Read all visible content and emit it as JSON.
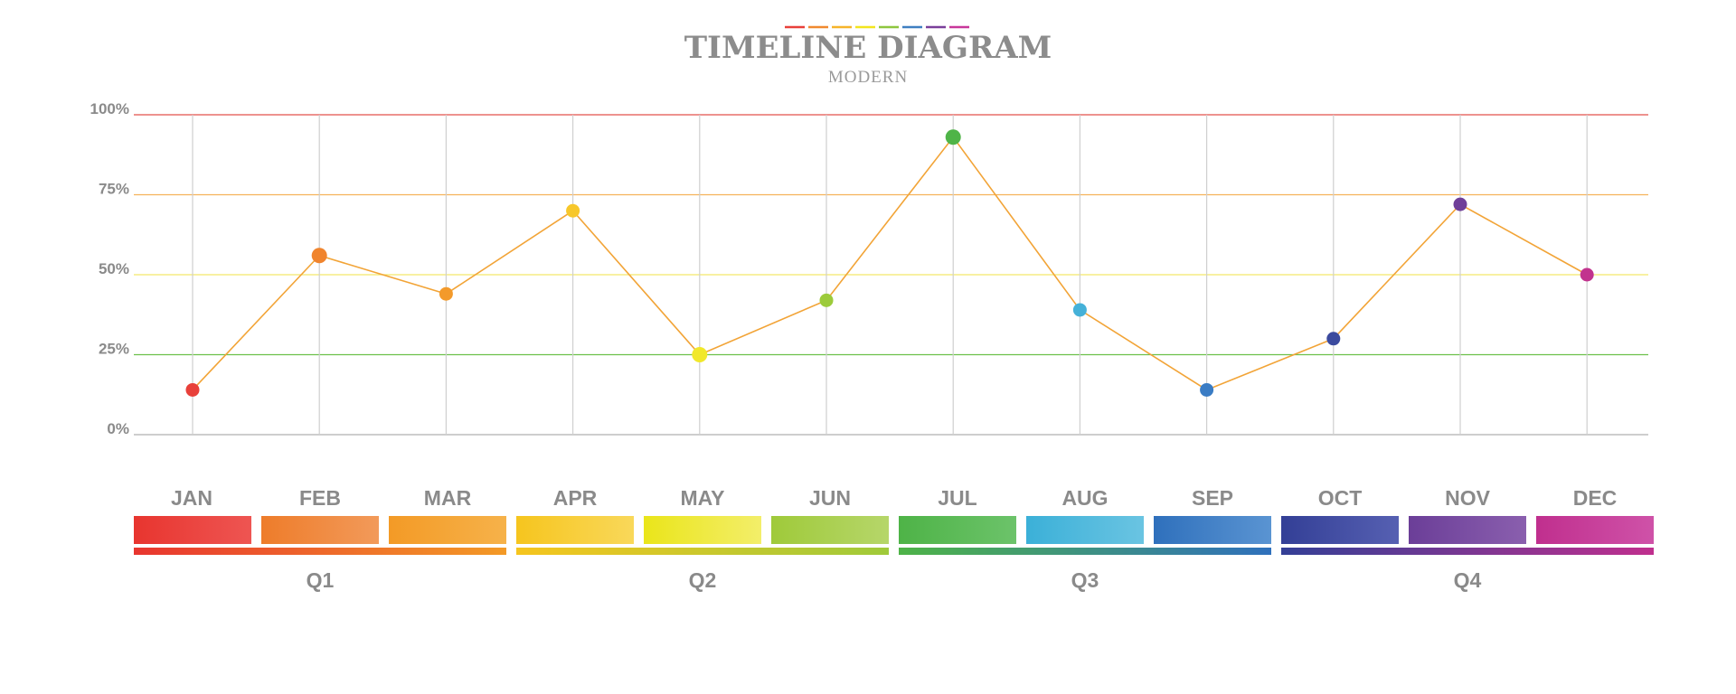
{
  "header": {
    "title": "TIMELINE DIAGRAM",
    "subtitle": "MODERN",
    "dash_colors": [
      "#e8403a",
      "#f0892f",
      "#f6b42a",
      "#f2e51e",
      "#8ec63f",
      "#3f7fc1",
      "#7a3f9a",
      "#c8379a"
    ]
  },
  "chart_data": {
    "type": "line",
    "title": "TIMELINE DIAGRAM",
    "subtitle": "MODERN",
    "xlabel": "",
    "ylabel": "",
    "categories": [
      "JAN",
      "FEB",
      "MAR",
      "APR",
      "MAY",
      "JUN",
      "JUL",
      "AUG",
      "SEP",
      "OCT",
      "NOV",
      "DEC"
    ],
    "values": [
      14,
      56,
      44,
      70,
      25,
      42,
      93,
      39,
      14,
      30,
      72,
      50
    ],
    "ylim": [
      0,
      100
    ],
    "yticks": [
      {
        "value": 0,
        "label": "0%"
      },
      {
        "value": 25,
        "label": "25%"
      },
      {
        "value": 50,
        "label": "50%"
      },
      {
        "value": 75,
        "label": "75%"
      },
      {
        "value": 100,
        "label": "100%"
      }
    ],
    "gridline_colors": {
      "0": "#bdbdbd",
      "25": "#6cc04a",
      "50": "#f3e86a",
      "75": "#f5b25a",
      "100": "#e2514b"
    },
    "grid": true,
    "line_color": "#f2a437",
    "point_colors": [
      "#e8403a",
      "#f0842d",
      "#f39a2b",
      "#f7c72a",
      "#f1e82a",
      "#9ccb3b",
      "#4fb448",
      "#45b1d8",
      "#3a7cc4",
      "#3b4a9e",
      "#6f3f99",
      "#c2338e"
    ],
    "month_band_colors": [
      [
        "#e8352f",
        "#ee5552"
      ],
      [
        "#ee7c2a",
        "#f29a5a"
      ],
      [
        "#f39a26",
        "#f6b24a"
      ],
      [
        "#f6c51e",
        "#f9d85a"
      ],
      [
        "#eae51a",
        "#f3ee6a"
      ],
      [
        "#9fca3a",
        "#b6d66a"
      ],
      [
        "#4eb347",
        "#6cc36a"
      ],
      [
        "#3bb0d8",
        "#6ac4e2"
      ],
      [
        "#2f70bc",
        "#5a94d2"
      ],
      [
        "#333f96",
        "#5660b2"
      ],
      [
        "#6b3e98",
        "#8a5fae"
      ],
      [
        "#c02f8e",
        "#cf52a8"
      ]
    ],
    "quarters": [
      {
        "label": "Q1",
        "colors": [
          "#e8352f",
          "#f39a26"
        ]
      },
      {
        "label": "Q2",
        "colors": [
          "#f6c51e",
          "#9fca3a"
        ]
      },
      {
        "label": "Q3",
        "colors": [
          "#4eb347",
          "#2f70bc"
        ]
      },
      {
        "label": "Q4",
        "colors": [
          "#333f96",
          "#c02f8e"
        ]
      }
    ]
  }
}
